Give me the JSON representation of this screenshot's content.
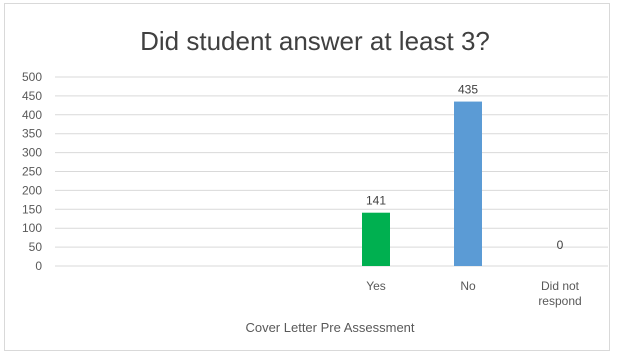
{
  "chart_data": {
    "type": "bar",
    "title": "Did student answer at least 3?",
    "xlabel": "Cover Letter Pre Assessment",
    "ylabel": "",
    "categories": [
      "Yes",
      "No",
      "Did not respond"
    ],
    "category_lines": [
      [
        "Yes"
      ],
      [
        "No"
      ],
      [
        "Did not",
        "respond"
      ]
    ],
    "values": [
      141,
      435,
      0
    ],
    "data_labels": [
      "141",
      "435",
      "0"
    ],
    "bar_colors": [
      "#00b050",
      "#5b9bd5",
      "#a5a5a5"
    ],
    "ylim": [
      0,
      500
    ],
    "yticks": [
      "0",
      "50",
      "100",
      "150",
      "200",
      "250",
      "300",
      "350",
      "400",
      "450",
      "500"
    ],
    "grid": true,
    "legend": "none"
  }
}
